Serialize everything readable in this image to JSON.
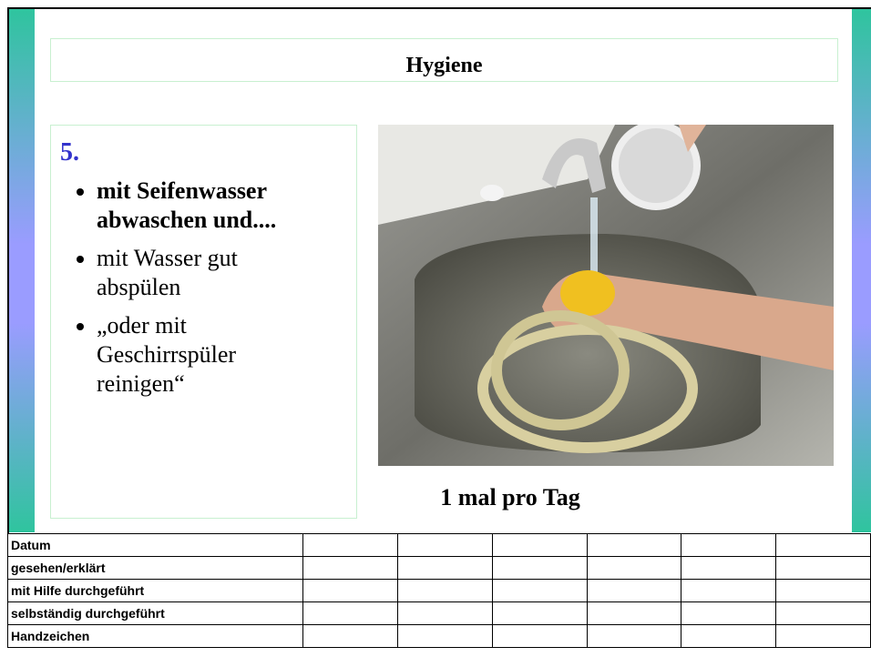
{
  "header": {
    "title": "Hygiene"
  },
  "content": {
    "number": "5.",
    "bullets": [
      "mit Seifenwasser abwaschen und....",
      "mit Wasser gut abspülen",
      "„oder mit Geschirrspüler reinigen“"
    ],
    "caption": "1 mal pro Tag"
  },
  "table": {
    "row_labels": [
      "Datum",
      "gesehen/erklärt",
      "mit Hilfe durchgeführt",
      "selbständig durchgeführt",
      "Handzeichen"
    ]
  }
}
